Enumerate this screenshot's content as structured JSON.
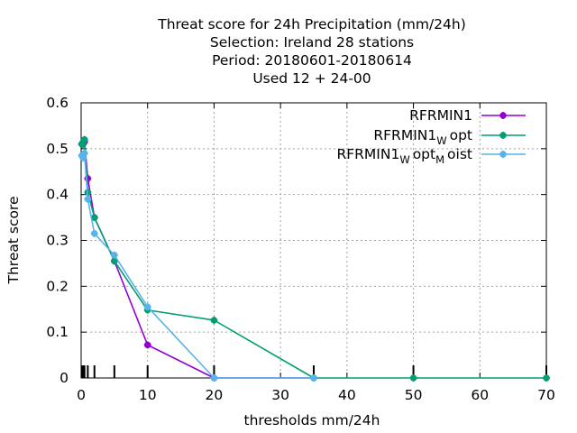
{
  "chart_data": {
    "type": "line",
    "title_lines": [
      "Threat score  for 24h Precipitation (mm/24h)",
      "Selection: Ireland      28 stations",
      "Period: 20180601-20180614",
      "Used  12 + 24-00"
    ],
    "xlabel": "thresholds mm/24h",
    "ylabel": "Threat score",
    "xlim": [
      0,
      70
    ],
    "ylim": [
      0,
      0.6
    ],
    "xticks": [
      "0",
      "10",
      "20",
      "30",
      "40",
      "50",
      "60",
      "70"
    ],
    "yticks": [
      "0",
      "0.1",
      "0.2",
      "0.3",
      "0.4",
      "0.5",
      "0.6"
    ],
    "grid": true,
    "legend_position": "top-right",
    "threshold_markers": [
      0.1,
      0.3,
      0.5,
      1,
      2,
      5,
      10,
      20,
      35,
      50,
      70
    ],
    "series": [
      {
        "name": "RFRMIN1",
        "legend_parts": [
          {
            "text": "RFRMIN1",
            "sub": false
          }
        ],
        "color": "#9400d3",
        "x": [
          0.1,
          0.3,
          0.5,
          1,
          2,
          5,
          10,
          20,
          35
        ],
        "y": [
          0.51,
          0.51,
          0.515,
          0.435,
          0.35,
          0.255,
          0.072,
          0.0,
          0.0
        ]
      },
      {
        "name": "RFRMIN1 W opt",
        "legend_parts": [
          {
            "text": "RFRMIN1",
            "sub": false
          },
          {
            "text": "W",
            "sub": true
          },
          {
            "text": "opt",
            "sub": false
          }
        ],
        "color": "#009e73",
        "x": [
          0.1,
          0.3,
          0.5,
          1,
          2,
          5,
          10,
          20,
          35,
          50,
          70
        ],
        "y": [
          0.51,
          0.515,
          0.52,
          0.405,
          0.35,
          0.255,
          0.148,
          0.126,
          0.0,
          0.0,
          0.0
        ]
      },
      {
        "name": "RFRMIN1 W opt M oist",
        "legend_parts": [
          {
            "text": "RFRMIN1",
            "sub": false
          },
          {
            "text": "W",
            "sub": true
          },
          {
            "text": "opt",
            "sub": false
          },
          {
            "text": "M",
            "sub": true
          },
          {
            "text": "oist",
            "sub": false
          }
        ],
        "color": "#56b4e9",
        "x": [
          0.1,
          0.3,
          0.5,
          1,
          2,
          5,
          10,
          20,
          35
        ],
        "y": [
          0.485,
          0.48,
          0.49,
          0.39,
          0.315,
          0.268,
          0.155,
          0.0,
          0.0
        ]
      }
    ]
  }
}
